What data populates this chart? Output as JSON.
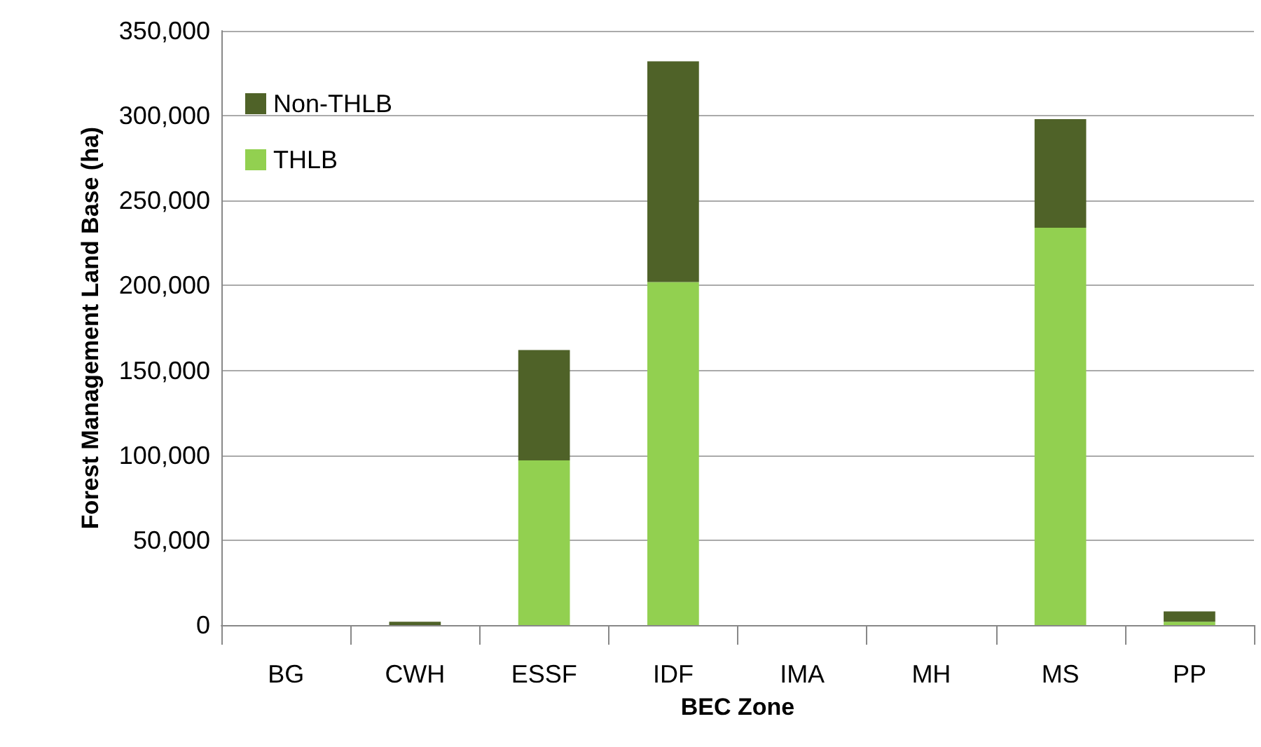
{
  "chart_data": {
    "type": "bar",
    "xlabel": "BEC Zone",
    "ylabel": "Forest Management Land Base (ha)",
    "categories": [
      "BG",
      "CWH",
      "ESSF",
      "IDF",
      "IMA",
      "MH",
      "MS",
      "PP"
    ],
    "series": [
      {
        "name": "THLB",
        "color": "#92d050",
        "values": [
          0,
          0,
          97000,
          202000,
          0,
          0,
          234000,
          2000
        ]
      },
      {
        "name": "Non-THLB",
        "color": "#4f6228",
        "values": [
          0,
          2000,
          65000,
          130000,
          0,
          0,
          64000,
          6000
        ]
      }
    ],
    "stacked": true,
    "ylim": [
      0,
      350000
    ],
    "yticks": [
      0,
      {
        "value": 50000,
        "label": "50,000"
      },
      {
        "value": 100000,
        "label": "100,000"
      },
      {
        "value": 150000,
        "label": "150,000"
      },
      {
        "value": 200000,
        "label": "200,000"
      },
      {
        "value": 250000,
        "label": "250,000"
      },
      {
        "value": 300000,
        "label": "300,000"
      },
      {
        "value": 350000,
        "label": "350,000"
      }
    ],
    "grid": "y",
    "legend": "top left"
  }
}
